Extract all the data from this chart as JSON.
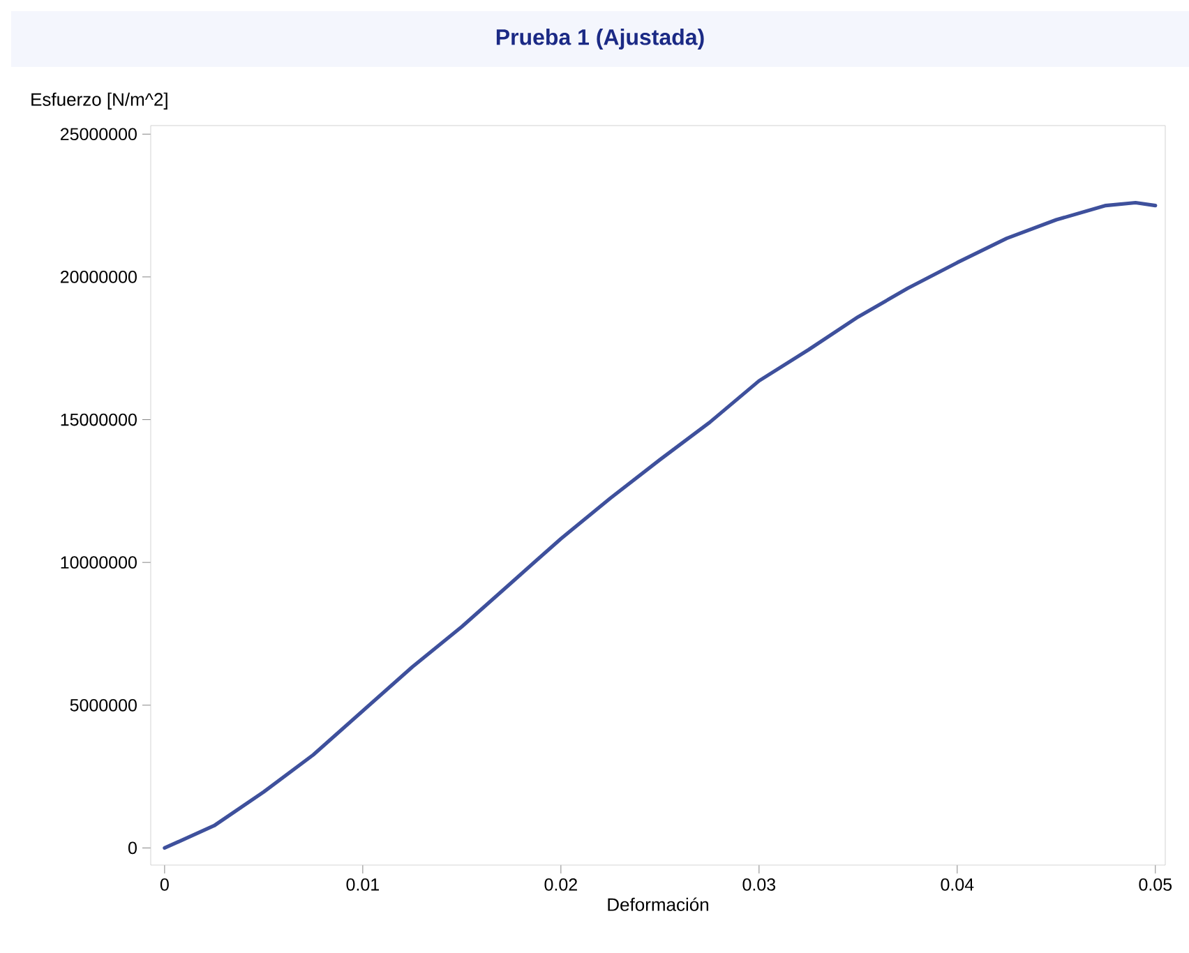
{
  "chart_data": {
    "type": "line",
    "title": "Prueba 1 (Ajustada)",
    "xlabel": "Deformación",
    "ylabel": "Esfuerzo [N/m^2]",
    "xlim": [
      -0.0007,
      0.0505
    ],
    "ylim": [
      -600000,
      25300000
    ],
    "xticks": [
      0,
      0.01,
      0.02,
      0.03,
      0.04,
      0.05
    ],
    "yticks": [
      0,
      5000000,
      10000000,
      15000000,
      20000000,
      25000000
    ],
    "marker": "none",
    "series": [
      {
        "color": "#3e509c",
        "x": [
          0,
          0.0025,
          0.005,
          0.0075,
          0.01,
          0.0125,
          0.015,
          0.0175,
          0.02,
          0.0225,
          0.025,
          0.0275,
          0.03,
          0.0325,
          0.035,
          0.0375,
          0.04,
          0.0425,
          0.045,
          0.0475,
          0.049,
          0.05
        ],
        "values": [
          0,
          780000,
          1960000,
          3260000,
          4800000,
          6340000,
          7750000,
          9290000,
          10830000,
          12250000,
          13600000,
          14900000,
          16360000,
          17450000,
          18600000,
          19600000,
          20500000,
          21350000,
          22000000,
          22500000,
          22600000,
          22500000
        ]
      }
    ]
  }
}
